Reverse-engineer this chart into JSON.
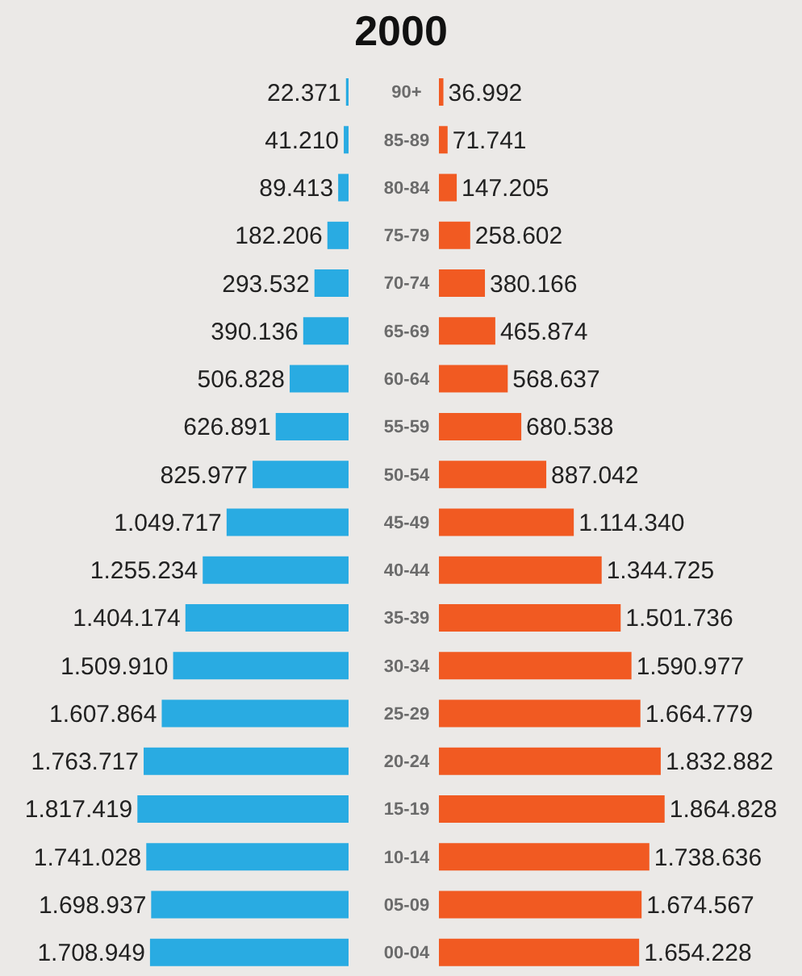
{
  "chart_data": [
    {
      "type": "bar",
      "title": "2000",
      "orientation": "horizontal",
      "categories": [
        "90+",
        "85-89",
        "80-84",
        "75-79",
        "70-74",
        "65-69",
        "60-64",
        "55-59",
        "50-54",
        "45-49",
        "40-44",
        "35-39",
        "30-34",
        "25-29",
        "20-24",
        "15-19",
        "10-14",
        "05-09",
        "00-04"
      ],
      "xlim": [
        3000000,
        0
      ],
      "tick_labels": "y",
      "series": [
        {
          "color": "#29abe2",
          "values": [
            22371,
            41210,
            89413,
            182206,
            293532,
            390136,
            506828,
            626891,
            825977,
            1049717,
            1255234,
            1404174,
            1509910,
            1607864,
            1763717,
            1817419,
            1741028,
            1698937,
            1708949
          ],
          "value_labels": [
            "22.371",
            "41.210",
            "89.413",
            "182.206",
            "293.532",
            "390.136",
            "506.828",
            "626.891",
            "825.977",
            "1.049.717",
            "1.255.234",
            "1.404.174",
            "1.509.910",
            "1.607.864",
            "1.763.717",
            "1.817.419",
            "1.741.028",
            "1.698.937",
            "1.708.949"
          ]
        }
      ]
    },
    {
      "type": "bar",
      "orientation": "horizontal",
      "categories": [
        null,
        null,
        null,
        null,
        null,
        null,
        null,
        null,
        null,
        null,
        null,
        null,
        null,
        null,
        null,
        null,
        null,
        null,
        null
      ],
      "xlim": [
        0,
        3000000
      ],
      "tick_labels": false,
      "series": [
        {
          "color": "#f15a22",
          "values": [
            36992,
            71741,
            147205,
            258602,
            380166,
            465874,
            568637,
            680538,
            887042,
            1114340,
            1344725,
            1501736,
            1590977,
            1664779,
            1832882,
            1864828,
            1738636,
            1674567,
            1654228
          ],
          "value_labels": [
            "36.992",
            "71.741",
            "147.205",
            "258.602",
            "380.166",
            "465.874",
            "568.637",
            "680.538",
            "887.042",
            "1.114.340",
            "1.344.725",
            "1.501.736",
            "1.590.977",
            "1.664.779",
            "1.832.882",
            "1.864.828",
            "1.738.636",
            "1.674.567",
            "1.654.228"
          ]
        }
      ]
    }
  ]
}
